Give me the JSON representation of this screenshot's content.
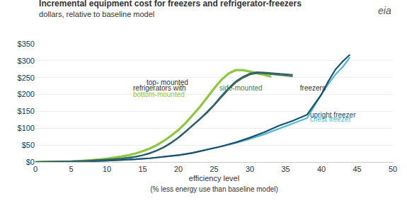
{
  "chart_data": {
    "type": "line",
    "title": "Incremental equipment cost for freezers and refrigerator-freezers",
    "subtitle": "dollars, relative to baseline model",
    "xlabel": "efficiency level",
    "xlabel2": "(% less energy use than baseline model)",
    "xlim": [
      0,
      50
    ],
    "ylim": [
      0,
      350
    ],
    "xticks": [
      0,
      5,
      10,
      15,
      20,
      25,
      30,
      35,
      40,
      45,
      50
    ],
    "yticks": [
      {
        "value": 0,
        "label": "$0"
      },
      {
        "value": 50,
        "label": "$50"
      },
      {
        "value": 100,
        "label": "$100"
      },
      {
        "value": 150,
        "label": "$150"
      },
      {
        "value": 200,
        "label": "$200"
      },
      {
        "value": 250,
        "label": "$250"
      },
      {
        "value": 300,
        "label": "$300"
      },
      {
        "value": 350,
        "label": "$350"
      }
    ],
    "grid": "y",
    "series": [
      {
        "color": "#4db8d4",
        "x": [
          0,
          2,
          4,
          6,
          8,
          10,
          12,
          14,
          16,
          18,
          20,
          22,
          24,
          26,
          28,
          30,
          32,
          34,
          36,
          38,
          40,
          41,
          42,
          43,
          44
        ],
        "values": [
          0,
          0.3,
          0.8,
          1.5,
          2.5,
          4.0,
          5.8,
          8.0,
          11.0,
          15.0,
          20.0,
          27.0,
          36.0,
          46.0,
          56.0,
          68.0,
          82.0,
          98.0,
          114.0,
          130.0,
          200.0,
          232.0,
          260.0,
          282.0,
          310.0
        ]
      },
      {
        "color": "#1c4e6e",
        "x": [
          0,
          2,
          4,
          6,
          8,
          10,
          12,
          14,
          16,
          18,
          20,
          22,
          24,
          26,
          28,
          30,
          32,
          34,
          36,
          38,
          40,
          41,
          42,
          43,
          44
        ],
        "values": [
          0,
          0.3,
          0.8,
          1.5,
          2.5,
          4.0,
          5.8,
          8.0,
          11.0,
          15.0,
          20.0,
          27.0,
          36.0,
          46.0,
          58.0,
          72.0,
          88.0,
          107.0,
          122.0,
          140.0,
          200.0,
          240.0,
          275.0,
          298.0,
          318.0
        ]
      },
      {
        "color": "#8dc63f",
        "x": [
          0,
          1,
          2,
          3,
          4,
          5,
          6,
          7,
          8,
          9,
          10,
          11,
          12,
          13,
          14,
          15,
          16,
          17,
          18,
          19,
          20,
          21,
          22,
          23,
          24,
          25,
          26,
          27,
          28,
          29,
          30,
          31,
          32,
          33
        ],
        "values": [
          0,
          0.1,
          0.3,
          0.6,
          1.0,
          1.5,
          2.5,
          3.8,
          5.5,
          7.5,
          9.8,
          12.5,
          16.0,
          20.0,
          25.0,
          32.0,
          40.0,
          50.0,
          63.0,
          78.0,
          95.0,
          115.0,
          138.0,
          163.0,
          190.0,
          218.0,
          243.0,
          262.0,
          272.0,
          272.0,
          268.0,
          263.0,
          258.0,
          253.0
        ]
      },
      {
        "color": "#4a7c3f",
        "x": [
          0,
          1,
          2,
          3,
          4,
          5,
          6,
          7,
          8,
          9,
          10,
          11,
          12,
          13,
          14,
          15,
          16,
          17,
          18,
          19,
          20,
          21,
          22,
          23,
          24,
          25,
          26,
          27,
          28,
          29,
          30,
          31,
          32,
          33,
          34,
          35,
          36
        ],
        "values": [
          0,
          0.1,
          0.3,
          0.6,
          1.0,
          1.5,
          2.2,
          3.0,
          4.0,
          5.2,
          6.5,
          8.0,
          10.0,
          12.5,
          15.5,
          20.0,
          26.0,
          34.0,
          44.0,
          57.0,
          72.0,
          90.0,
          108.0,
          126.0,
          146.0,
          168.0,
          192.0,
          215.0,
          235.0,
          249.0,
          259.0,
          263.0,
          262.0,
          260.0,
          258.0,
          256.0,
          254.0
        ]
      },
      {
        "color": "#2e5f6e",
        "x": [
          0,
          1,
          2,
          3,
          4,
          5,
          6,
          7,
          8,
          9,
          10,
          11,
          12,
          13,
          14,
          15,
          16,
          17,
          18,
          19,
          20,
          21,
          22,
          23,
          24,
          25,
          26,
          27,
          28,
          29,
          30,
          31,
          32,
          33,
          34,
          35,
          36
        ],
        "values": [
          0,
          0.1,
          0.3,
          0.6,
          1.0,
          1.5,
          2.2,
          3.0,
          4.0,
          5.2,
          6.5,
          8.0,
          10.0,
          12.5,
          15.5,
          20.0,
          26.0,
          34.0,
          44.0,
          57.0,
          72.0,
          90.0,
          108.0,
          127.0,
          148.0,
          170.0,
          195.0,
          218.0,
          238.0,
          252.0,
          262.0,
          266.0,
          265.0,
          263.0,
          261.0,
          260.0,
          258.0
        ]
      }
    ],
    "annotations": [
      {
        "text": "top- mounted",
        "x": 18.5,
        "y": 235,
        "color": "#333333",
        "align": "center"
      },
      {
        "text": "refrigerators with ",
        "x": 13.5,
        "y": 218,
        "color": "#333333"
      },
      {
        "text": "side-mounted",
        "x": 25.5,
        "y": 218,
        "color": "#4a7c3f"
      },
      {
        "text": " freezers",
        "x": 36.5,
        "y": 218,
        "color": "#333333"
      },
      {
        "text": "bottom-mounted",
        "x": 13.5,
        "y": 200,
        "color": "#8dc63f"
      },
      {
        "text": "upright freezer",
        "x": 38.2,
        "y": 140,
        "color": "#1c4e6e"
      },
      {
        "text": "chest freezer",
        "x": 38.2,
        "y": 126,
        "color": "#4db8d4"
      },
      {
        "text": "eia",
        "color": "#555566"
      }
    ],
    "color": "#333333"
  }
}
